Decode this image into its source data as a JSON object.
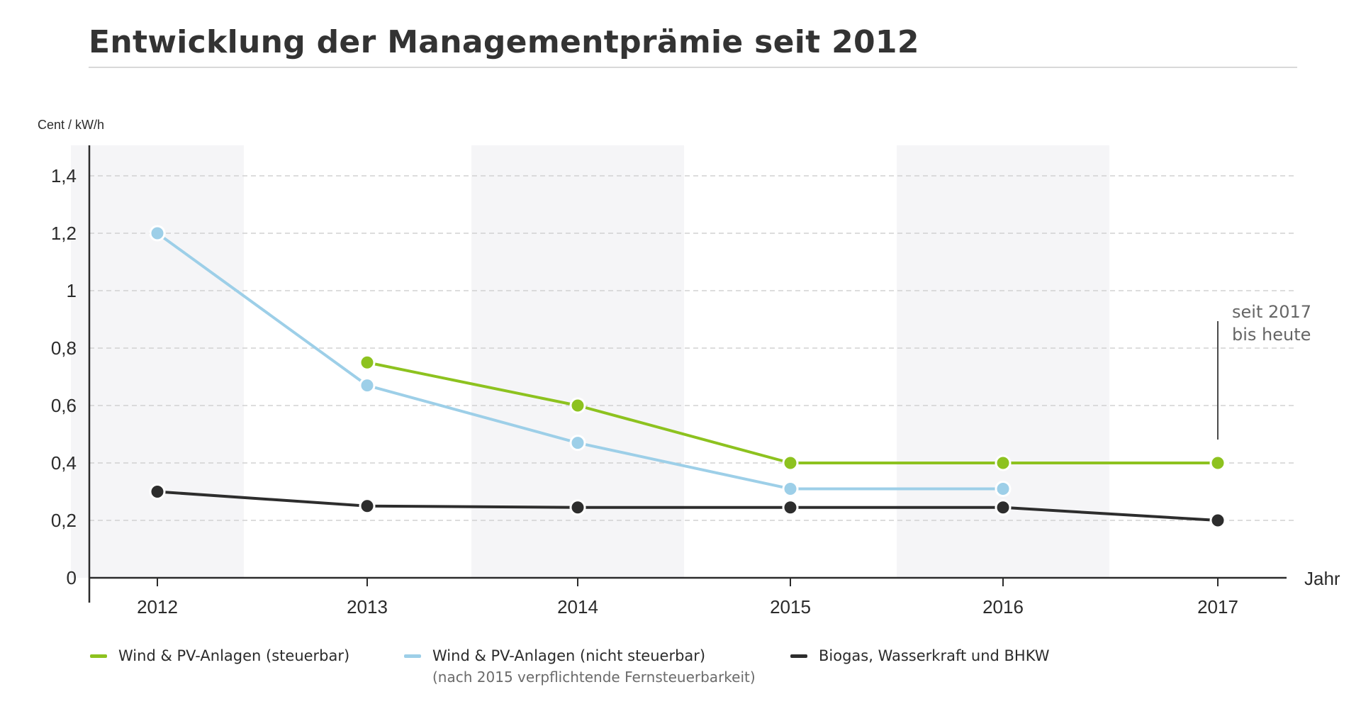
{
  "chart_data": {
    "type": "line",
    "title": "Entwicklung der Managementprämie seit 2012",
    "ylabel": "Cent / kW/h",
    "xlabel": "Jahr",
    "x": [
      "2012",
      "2013",
      "2014",
      "2015",
      "2016",
      "2017"
    ],
    "ylim": [
      0,
      1.5
    ],
    "yticks": [
      0,
      0.2,
      0.4,
      0.6,
      0.8,
      1,
      1.2,
      1.4
    ],
    "ytick_labels": [
      "0",
      "0,2",
      "0,4",
      "0,6",
      "0,8",
      "1",
      "1,2",
      "1,4"
    ],
    "grid": "horizontal dashed",
    "shaded_bands": [
      "2012",
      "2014",
      "2016"
    ],
    "series": [
      {
        "name": "Wind & PV-Anlagen (steuerbar)",
        "note": "",
        "color": "#8dc21f",
        "values": [
          null,
          0.75,
          0.6,
          0.4,
          0.4,
          0.4
        ]
      },
      {
        "name": "Wind & PV-Anlagen (nicht steuerbar)",
        "note": "(nach 2015 verpflichtende Fernsteuerbarkeit)",
        "color": "#9dcfe8",
        "values": [
          1.2,
          0.67,
          0.47,
          0.31,
          0.31,
          null
        ]
      },
      {
        "name": "Biogas, Wasserkraft und BHKW",
        "note": "",
        "color": "#2d2d2d",
        "values": [
          0.3,
          0.25,
          0.245,
          0.245,
          0.245,
          0.2
        ]
      }
    ],
    "annotation": {
      "lines": [
        "seit 2017",
        "bis heute"
      ],
      "at_x": "2017"
    },
    "legend_position": "bottom"
  }
}
